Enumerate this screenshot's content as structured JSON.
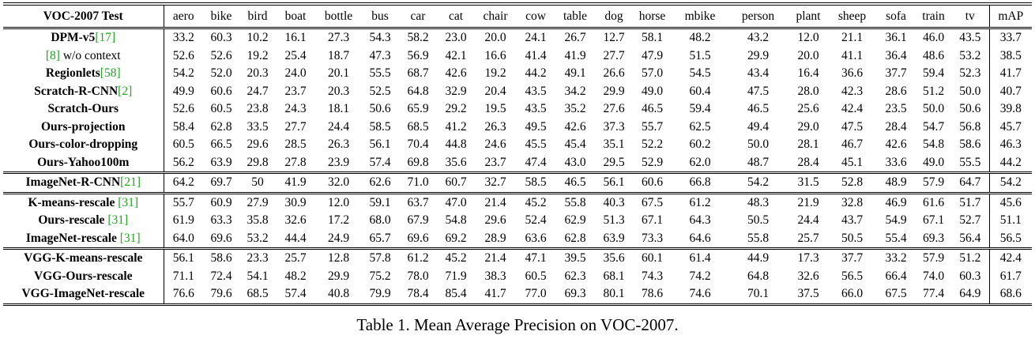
{
  "table": {
    "header": [
      "VOC-2007 Test",
      "aero",
      "bike",
      "bird",
      "boat",
      "bottle",
      "bus",
      "car",
      "cat",
      "chair",
      "cow",
      "table",
      "dog",
      "horse",
      "mbike",
      "person",
      "plant",
      "sheep",
      "sofa",
      "train",
      "tv",
      "mAP"
    ],
    "groups": [
      [
        {
          "method": "DPM-v5",
          "cite": "[17]",
          "suffix": "",
          "values": [
            "33.2",
            "60.3",
            "10.2",
            "16.1",
            "27.3",
            "54.3",
            "58.2",
            "23.0",
            "20.0",
            "24.1",
            "26.7",
            "12.7",
            "58.1",
            "48.2",
            "43.2",
            "12.0",
            "21.1",
            "36.1",
            "46.0",
            "43.5",
            "33.7"
          ]
        },
        {
          "method": "",
          "cite": "[8]",
          "suffix": " w/o context",
          "plain": true,
          "values": [
            "52.6",
            "52.6",
            "19.2",
            "25.4",
            "18.7",
            "47.3",
            "56.9",
            "42.1",
            "16.6",
            "41.4",
            "41.9",
            "27.7",
            "47.9",
            "51.5",
            "29.9",
            "20.0",
            "41.1",
            "36.4",
            "48.6",
            "53.2",
            "38.5"
          ]
        },
        {
          "method": "Regionlets",
          "cite": "[58]",
          "suffix": "",
          "values": [
            "54.2",
            "52.0",
            "20.3",
            "24.0",
            "20.1",
            "55.5",
            "68.7",
            "42.6",
            "19.2",
            "44.2",
            "49.1",
            "26.6",
            "57.0",
            "54.5",
            "43.4",
            "16.4",
            "36.6",
            "37.7",
            "59.4",
            "52.3",
            "41.7"
          ]
        },
        {
          "method": "Scratch-R-CNN",
          "cite": "[2]",
          "suffix": "",
          "values": [
            "49.9",
            "60.6",
            "24.7",
            "23.7",
            "20.3",
            "52.5",
            "64.8",
            "32.9",
            "20.4",
            "43.5",
            "34.2",
            "29.9",
            "49.0",
            "60.4",
            "47.5",
            "28.0",
            "42.3",
            "28.6",
            "51.2",
            "50.0",
            "40.7"
          ]
        },
        {
          "method": "Scratch-Ours",
          "cite": "",
          "suffix": "",
          "values": [
            "52.6",
            "60.5",
            "23.8",
            "24.3",
            "18.1",
            "50.6",
            "65.9",
            "29.2",
            "19.5",
            "43.5",
            "35.2",
            "27.6",
            "46.5",
            "59.4",
            "46.5",
            "25.6",
            "42.4",
            "23.5",
            "50.0",
            "50.6",
            "39.8"
          ]
        },
        {
          "method": "Ours-projection",
          "cite": "",
          "suffix": "",
          "values": [
            "58.4",
            "62.8",
            "33.5",
            "27.7",
            "24.4",
            "58.5",
            "68.5",
            "41.2",
            "26.3",
            "49.5",
            "42.6",
            "37.3",
            "55.7",
            "62.5",
            "49.4",
            "29.0",
            "47.5",
            "28.4",
            "54.7",
            "56.8",
            "45.7"
          ]
        },
        {
          "method": "Ours-color-dropping",
          "cite": "",
          "suffix": "",
          "values": [
            "60.5",
            "66.5",
            "29.6",
            "28.5",
            "26.3",
            "56.1",
            "70.4",
            "44.8",
            "24.6",
            "45.5",
            "45.4",
            "35.1",
            "52.2",
            "60.2",
            "50.0",
            "28.1",
            "46.7",
            "42.6",
            "54.8",
            "58.6",
            "46.3"
          ]
        },
        {
          "method": "Ours-Yahoo100m",
          "cite": "",
          "suffix": "",
          "values": [
            "56.2",
            "63.9",
            "29.8",
            "27.8",
            "23.9",
            "57.4",
            "69.8",
            "35.6",
            "23.7",
            "47.4",
            "43.0",
            "29.5",
            "52.9",
            "62.0",
            "48.7",
            "28.4",
            "45.1",
            "33.6",
            "49.0",
            "55.5",
            "44.2"
          ]
        }
      ],
      [
        {
          "method": "ImageNet-R-CNN",
          "cite": "[21]",
          "suffix": "",
          "values": [
            "64.2",
            "69.7",
            "50",
            "41.9",
            "32.0",
            "62.6",
            "71.0",
            "60.7",
            "32.7",
            "58.5",
            "46.5",
            "56.1",
            "60.6",
            "66.8",
            "54.2",
            "31.5",
            "52.8",
            "48.9",
            "57.9",
            "64.7",
            "54.2"
          ]
        }
      ],
      [
        {
          "method": "K-means-rescale ",
          "cite": "[31]",
          "suffix": "",
          "values": [
            "55.7",
            "60.9",
            "27.9",
            "30.9",
            "12.0",
            "59.1",
            "63.7",
            "47.0",
            "21.4",
            "45.2",
            "55.8",
            "40.3",
            "67.5",
            "61.2",
            "48.3",
            "21.9",
            "32.8",
            "46.9",
            "61.6",
            "51.7",
            "45.6"
          ]
        },
        {
          "method": "Ours-rescale ",
          "cite": "[31]",
          "suffix": "",
          "values": [
            "61.9",
            "63.3",
            "35.8",
            "32.6",
            "17.2",
            "68.0",
            "67.9",
            "54.8",
            "29.6",
            "52.4",
            "62.9",
            "51.3",
            "67.1",
            "64.3",
            "50.5",
            "24.4",
            "43.7",
            "54.9",
            "67.1",
            "52.7",
            "51.1"
          ]
        },
        {
          "method": "ImageNet-rescale ",
          "cite": "[31]",
          "suffix": "",
          "values": [
            "64.0",
            "69.6",
            "53.2",
            "44.4",
            "24.9",
            "65.7",
            "69.6",
            "69.2",
            "28.9",
            "63.6",
            "62.8",
            "63.9",
            "73.3",
            "64.6",
            "55.8",
            "25.7",
            "50.5",
            "55.4",
            "69.3",
            "56.4",
            "56.5"
          ]
        }
      ],
      [
        {
          "method": "VGG-K-means-rescale",
          "cite": "",
          "suffix": "",
          "values": [
            "56.1",
            "58.6",
            "23.3",
            "25.7",
            "12.8",
            "57.8",
            "61.2",
            "45.2",
            "21.4",
            "47.1",
            "39.5",
            "35.6",
            "60.1",
            "61.4",
            "44.9",
            "17.3",
            "37.7",
            "33.2",
            "57.9",
            "51.2",
            "42.4"
          ]
        },
        {
          "method": "VGG-Ours-rescale",
          "cite": "",
          "suffix": "",
          "values": [
            "71.1",
            "72.4",
            "54.1",
            "48.2",
            "29.9",
            "75.2",
            "78.0",
            "71.9",
            "38.3",
            "60.5",
            "62.3",
            "68.1",
            "74.3",
            "74.2",
            "64.8",
            "32.6",
            "56.5",
            "66.4",
            "74.0",
            "60.3",
            "61.7"
          ]
        },
        {
          "method": "VGG-ImageNet-rescale",
          "cite": "",
          "suffix": "",
          "values": [
            "76.6",
            "79.6",
            "68.5",
            "57.4",
            "40.8",
            "79.9",
            "78.4",
            "85.4",
            "41.7",
            "77.0",
            "69.3",
            "80.1",
            "78.6",
            "74.6",
            "70.1",
            "37.5",
            "66.0",
            "67.5",
            "77.4",
            "64.9",
            "68.6"
          ]
        }
      ]
    ]
  },
  "caption": "Table 1. Mean Average Precision on VOC-2007.",
  "colors": {
    "citation": "#1fa51f",
    "text": "#000000"
  }
}
